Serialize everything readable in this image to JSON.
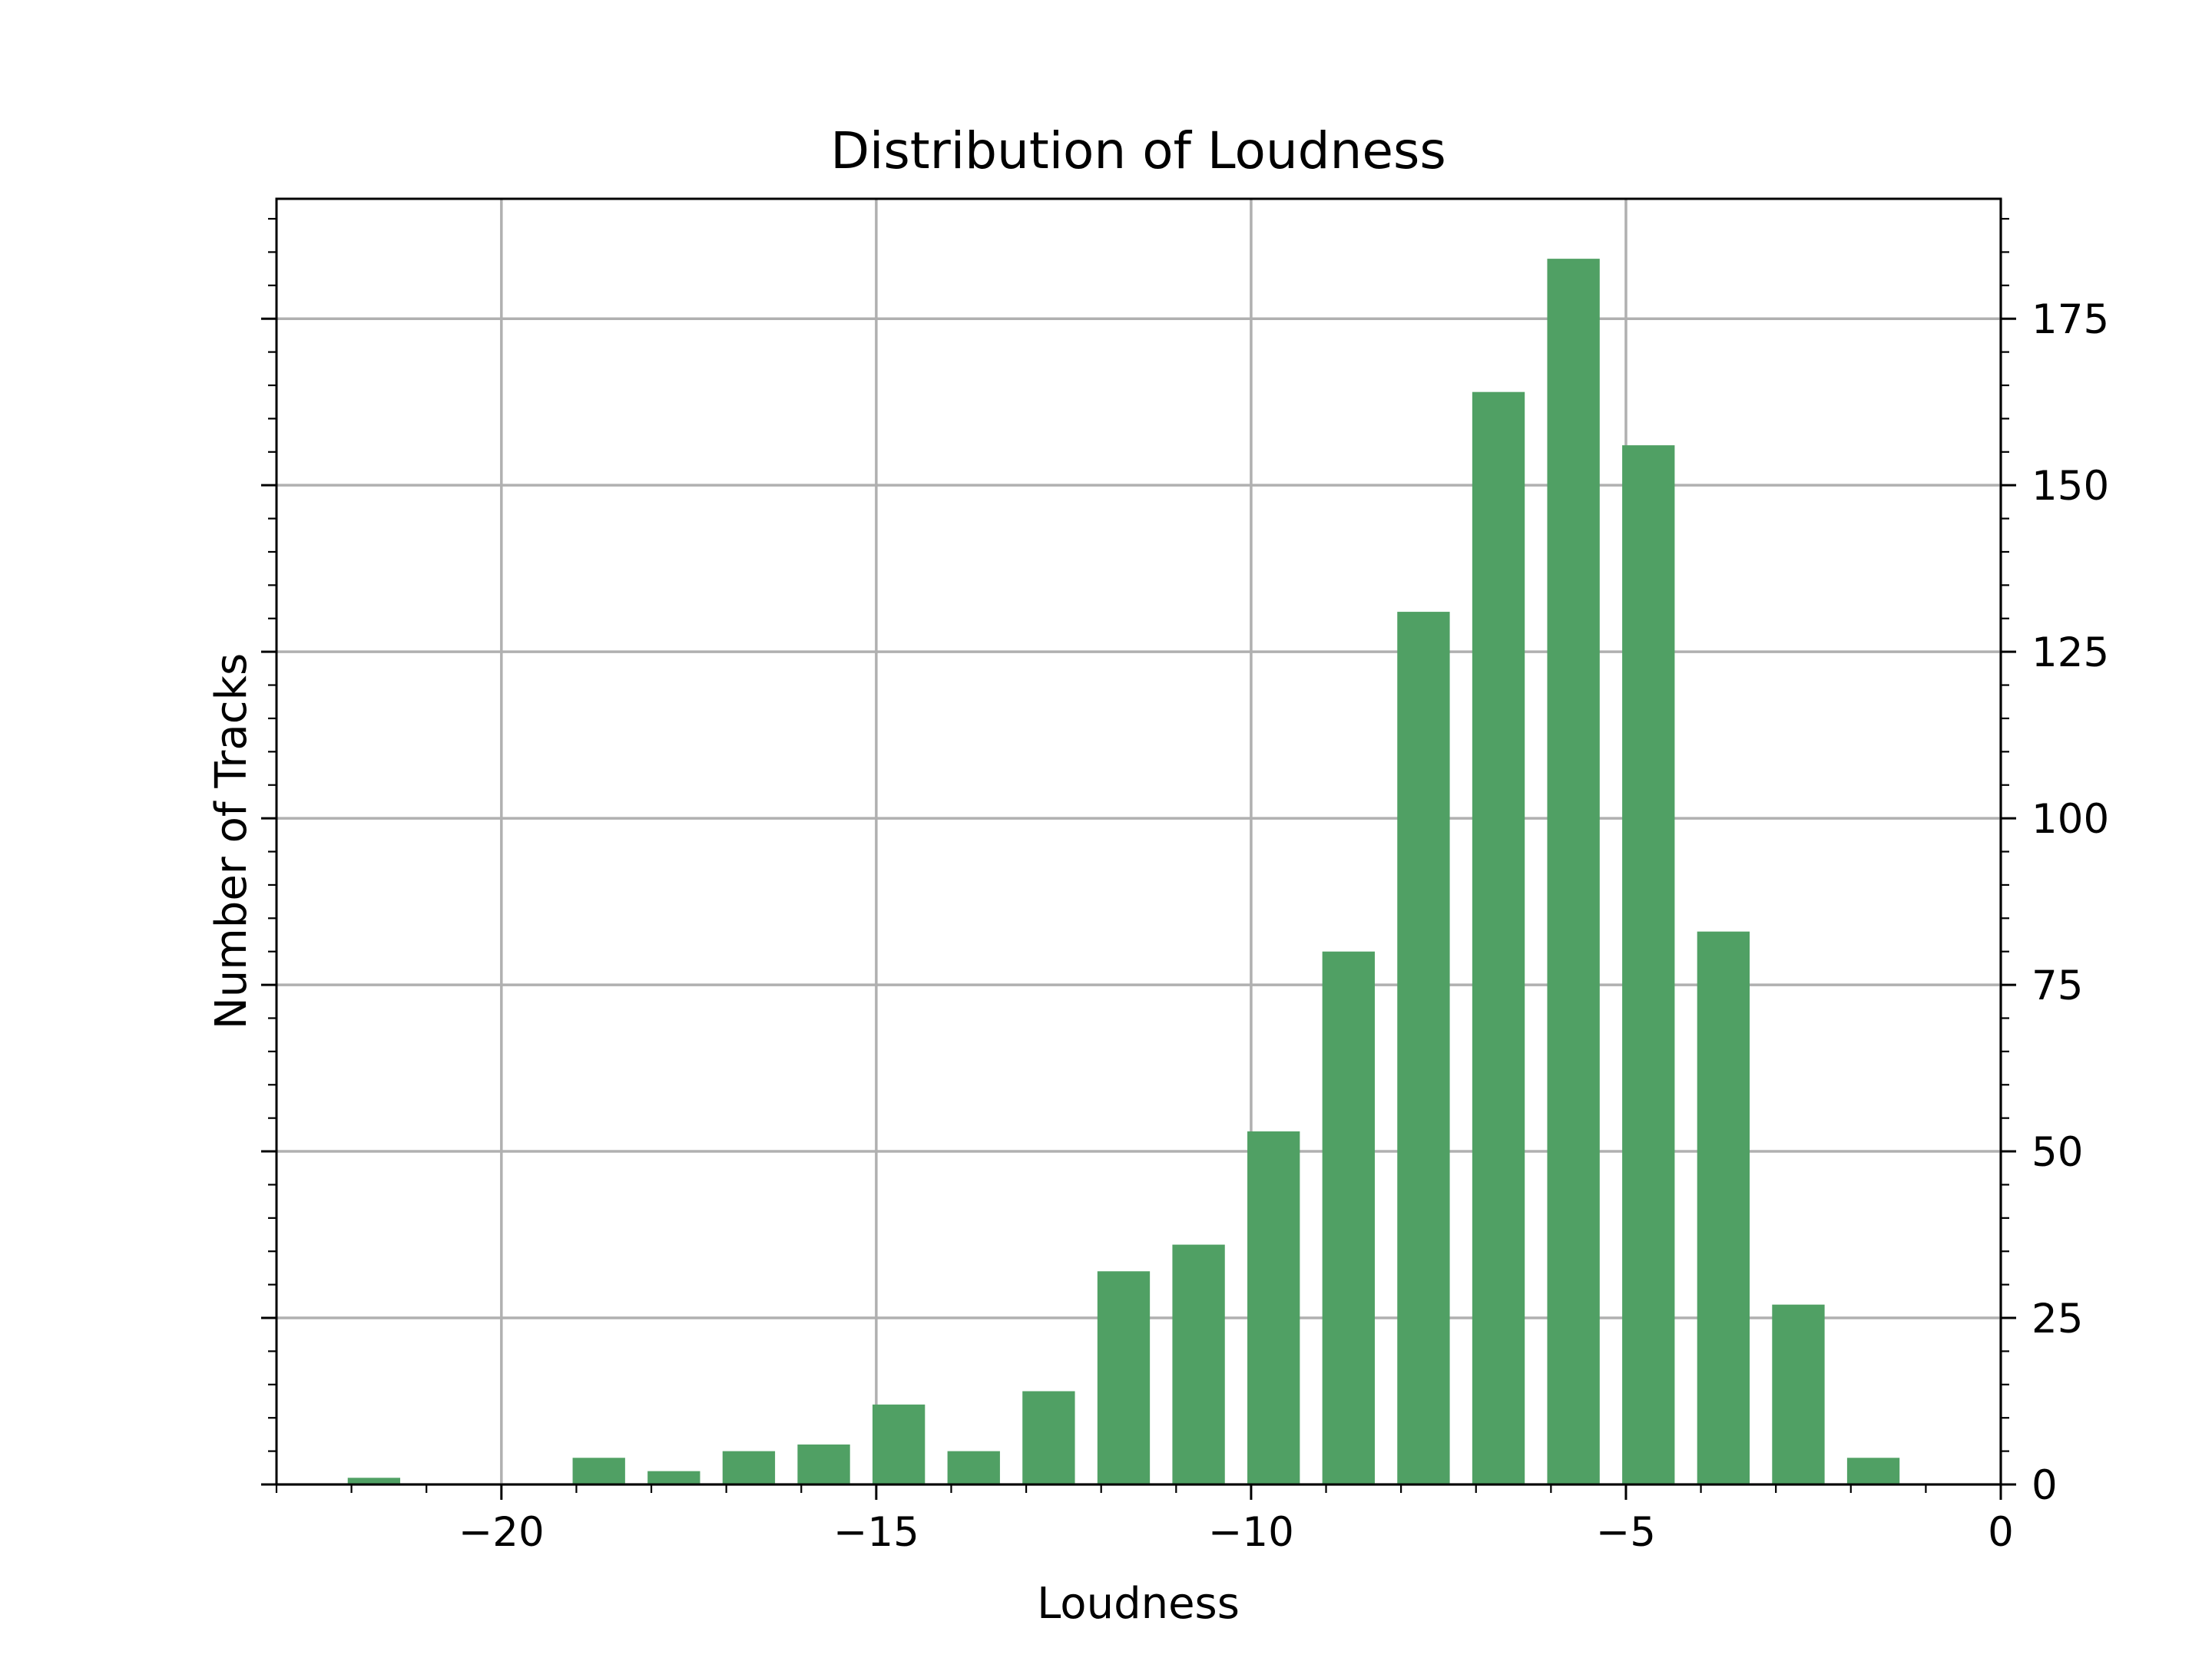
{
  "chart_data": {
    "type": "bar",
    "title": "Distribution of Loudness",
    "xlabel": "Loudness",
    "ylabel": "Number of Tracks",
    "xlim": [
      -23,
      0
    ],
    "ylim": [
      0,
      193
    ],
    "x_ticks": [
      -20,
      -15,
      -10,
      -5,
      0
    ],
    "x_tick_labels": [
      "−20",
      "−15",
      "−10",
      "−5",
      "0"
    ],
    "y_ticks": [
      0,
      25,
      50,
      75,
      100,
      125,
      150,
      175
    ],
    "y_tick_labels": [
      "0",
      "25",
      "50",
      "75",
      "100",
      "125",
      "150",
      "175"
    ],
    "y_tick_side": "right",
    "grid": true,
    "bar_color": "#50a064",
    "grid_color": "#b0b0b0",
    "bars": [
      {
        "x_start": -22.2,
        "x_end": -21.2,
        "value": 1
      },
      {
        "x_start": -21.2,
        "x_end": -20.2,
        "value": 0
      },
      {
        "x_start": -20.2,
        "x_end": -19.2,
        "value": 0
      },
      {
        "x_start": -19.2,
        "x_end": -18.2,
        "value": 4
      },
      {
        "x_start": -18.2,
        "x_end": -17.2,
        "value": 2
      },
      {
        "x_start": -17.2,
        "x_end": -16.2,
        "value": 5
      },
      {
        "x_start": -16.2,
        "x_end": -15.2,
        "value": 6
      },
      {
        "x_start": -15.2,
        "x_end": -14.2,
        "value": 12
      },
      {
        "x_start": -14.2,
        "x_end": -13.2,
        "value": 5
      },
      {
        "x_start": -13.2,
        "x_end": -12.2,
        "value": 14
      },
      {
        "x_start": -12.2,
        "x_end": -11.2,
        "value": 32
      },
      {
        "x_start": -11.2,
        "x_end": -10.2,
        "value": 36
      },
      {
        "x_start": -10.2,
        "x_end": -9.2,
        "value": 53
      },
      {
        "x_start": -9.2,
        "x_end": -8.2,
        "value": 80
      },
      {
        "x_start": -8.2,
        "x_end": -7.2,
        "value": 131
      },
      {
        "x_start": -7.2,
        "x_end": -6.2,
        "value": 164
      },
      {
        "x_start": -6.2,
        "x_end": -5.2,
        "value": 184
      },
      {
        "x_start": -5.2,
        "x_end": -4.2,
        "value": 156
      },
      {
        "x_start": -4.2,
        "x_end": -3.2,
        "value": 83
      },
      {
        "x_start": -3.2,
        "x_end": -2.2,
        "value": 27
      },
      {
        "x_start": -2.2,
        "x_end": -1.2,
        "value": 4
      }
    ]
  }
}
